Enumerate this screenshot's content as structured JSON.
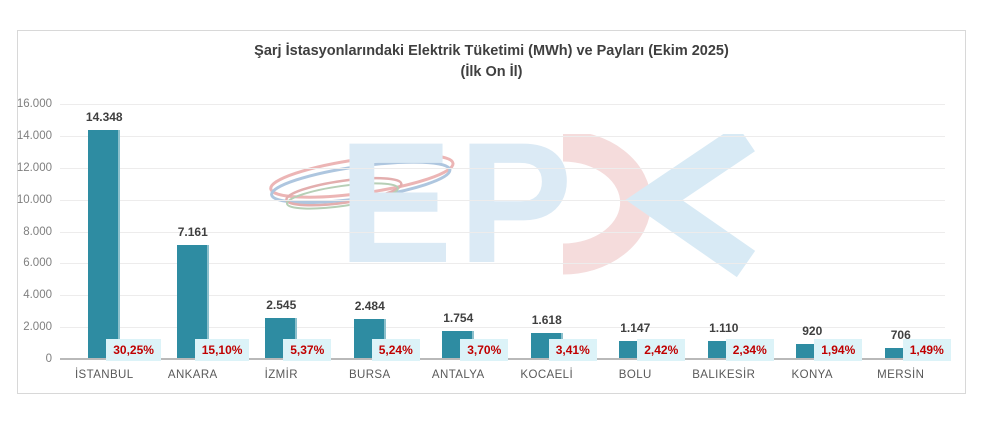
{
  "page": {
    "background": "#ffffff"
  },
  "title": {
    "line1": "Şarj İstasyonlarındaki Elektrik Tüketimi (MWh) ve Payları (Ekim 2025)",
    "line2": "(İlk On İl)"
  },
  "watermark": {
    "letters": [
      "E",
      "P",
      "D",
      "K"
    ]
  },
  "colors": {
    "bar": "#2e8ca2",
    "pct_background": "#dcf3f8",
    "pct_text": "#c00000",
    "value_text": "#3f3f3f",
    "category_text": "#595959",
    "ytick_text": "#7f7f7f",
    "gridline": "#edecec",
    "axis_line": "#b9b9b9",
    "chart_border": "#d8d8d8",
    "title_text": "#3f3f3f",
    "watermark_blue": "#dbeaf5",
    "watermark_red": "#f5dcdc",
    "watermark_k_blue": "#d8eaf5"
  },
  "chart_data": {
    "type": "bar",
    "title": "Şarj İstasyonlarındaki Elektrik Tüketimi (MWh) ve Payları (Ekim 2025)",
    "subtitle": "(İlk On İl)",
    "categories": [
      "İSTANBUL",
      "ANKARA",
      "İZMİR",
      "BURSA",
      "ANTALYA",
      "KOCAELİ",
      "BOLU",
      "BALIKESİR",
      "KONYA",
      "MERSİN"
    ],
    "series": [
      {
        "name": "Elektrik Tüketimi (MWh)",
        "values": [
          14348,
          7161,
          2545,
          2484,
          1754,
          1618,
          1147,
          1110,
          920,
          706
        ],
        "value_labels": [
          "14.348",
          "7.161",
          "2.545",
          "2.484",
          "1.754",
          "1.618",
          "1.147",
          "1.110",
          "920",
          "706"
        ]
      },
      {
        "name": "Payları (%)",
        "values": [
          30.25,
          15.1,
          5.37,
          5.24,
          3.7,
          3.41,
          2.42,
          2.34,
          1.94,
          1.49
        ],
        "value_labels": [
          "30,25%",
          "15,10%",
          "5,37%",
          "5,24%",
          "3,70%",
          "3,41%",
          "2,42%",
          "2,34%",
          "1,94%",
          "1,49%"
        ]
      }
    ],
    "ylim": [
      0,
      16000
    ],
    "y_ticks": [
      "16.000",
      "14.000",
      "12.000",
      "10.000",
      "8.000",
      "6.000",
      "4.000",
      "2.000",
      "0"
    ],
    "grid": true,
    "legend_position": "none"
  }
}
